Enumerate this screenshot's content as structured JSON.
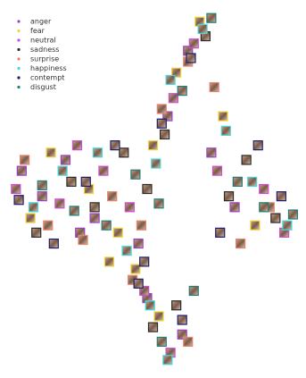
{
  "chart_data": {
    "type": "scatter",
    "xlim": [
      0,
      100
    ],
    "ylim": [
      0,
      100
    ],
    "grid": false,
    "legend": "upper left",
    "series": [
      {
        "name": "anger",
        "color": "#9b3fc8",
        "x": [
          5,
          12,
          20,
          30,
          45,
          55,
          62,
          70,
          78,
          48,
          60,
          25
        ],
        "values": [
          55,
          48,
          58,
          42,
          35,
          70,
          88,
          60,
          45,
          20,
          10,
          38
        ]
      },
      {
        "name": "fear",
        "color": "#f2d43a",
        "x": [
          8,
          15,
          28,
          38,
          50,
          58,
          66,
          74,
          85,
          52,
          44,
          35
        ],
        "values": [
          42,
          60,
          50,
          38,
          62,
          82,
          96,
          70,
          40,
          15,
          28,
          30
        ]
      },
      {
        "name": "neutral",
        "color": "#d04ad8",
        "x": [
          3,
          18,
          24,
          33,
          42,
          57,
          64,
          72,
          88,
          95,
          47,
          56
        ],
        "values": [
          50,
          46,
          62,
          55,
          45,
          75,
          90,
          55,
          50,
          38,
          22,
          5
        ]
      },
      {
        "name": "sadness",
        "color": "#2b2b2b",
        "x": [
          10,
          22,
          30,
          40,
          48,
          54,
          68,
          76,
          82,
          92,
          50,
          58
        ],
        "values": [
          38,
          52,
          45,
          60,
          50,
          65,
          92,
          48,
          58,
          42,
          12,
          18
        ]
      },
      {
        "name": "surprise",
        "color": "#e8826a",
        "x": [
          6,
          14,
          26,
          36,
          46,
          53,
          62,
          71,
          80,
          90,
          43,
          62
        ],
        "values": [
          58,
          40,
          36,
          48,
          40,
          72,
          85,
          78,
          35,
          45,
          25,
          8
        ]
      },
      {
        "name": "happiness",
        "color": "#3fd9e0",
        "x": [
          9,
          19,
          31,
          41,
          51,
          56,
          67,
          75,
          84,
          96,
          49,
          55
        ],
        "values": [
          45,
          55,
          60,
          33,
          57,
          80,
          94,
          66,
          52,
          40,
          18,
          3
        ]
      },
      {
        "name": "contempt",
        "color": "#1c1c72",
        "x": [
          4,
          16,
          27,
          37,
          47,
          53,
          63,
          73,
          86,
          94,
          45,
          60
        ],
        "values": [
          47,
          35,
          52,
          62,
          30,
          68,
          86,
          38,
          62,
          48,
          24,
          14
        ]
      },
      {
        "name": "disgust",
        "color": "#1f7f7a",
        "x": [
          12,
          23,
          34,
          44,
          52,
          60,
          70,
          79,
          88,
          98,
          53,
          64
        ],
        "values": [
          51,
          44,
          40,
          54,
          46,
          77,
          97,
          52,
          45,
          43,
          8,
          22
        ]
      }
    ]
  }
}
